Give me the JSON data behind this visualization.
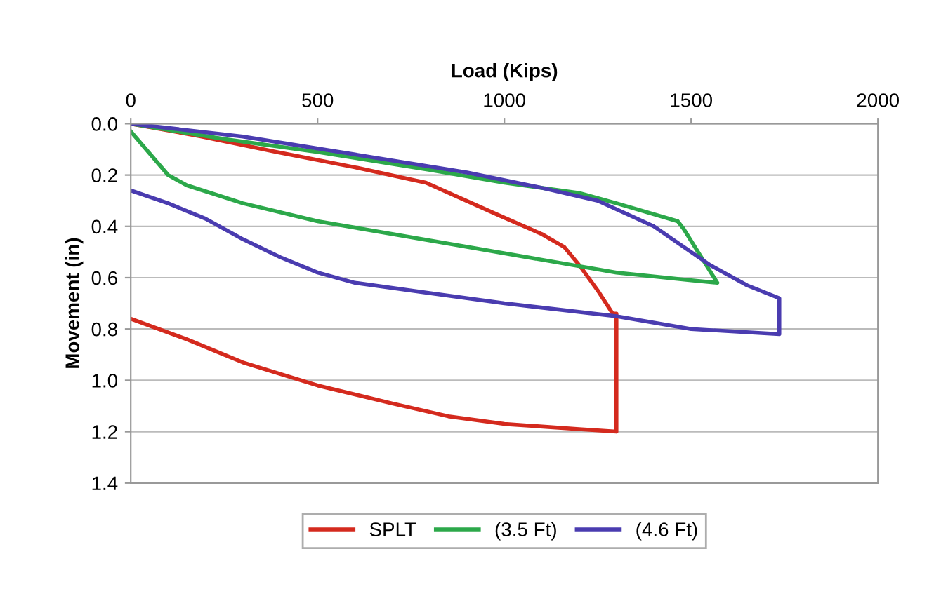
{
  "chart_data": {
    "type": "line",
    "xlabel": "Load (Kips)",
    "ylabel": "Movement (in)",
    "xlim": [
      0,
      2000
    ],
    "xticks": [
      0,
      500,
      1000,
      1500,
      2000
    ],
    "ylim": [
      1.4,
      0.0
    ],
    "yticks": [
      {
        "value": 0,
        "label": "0.0"
      },
      {
        "value": 0.2,
        "label": "0.2"
      },
      {
        "value": 0.4,
        "label": "0.4"
      },
      {
        "value": 0.6,
        "label": "0.6"
      },
      {
        "value": 0.8,
        "label": "0.8"
      },
      {
        "value": 1.0,
        "label": "1.0"
      },
      {
        "value": 1.2,
        "label": "1.2"
      },
      {
        "value": 1.4,
        "label": "1.4"
      }
    ],
    "grid": "y",
    "legend": "bottom",
    "marker": "none",
    "line_style": "solid",
    "series": [
      {
        "name": "SPLT",
        "color": "#d42a1e",
        "x": [
          0,
          190,
          390,
          600,
          790,
          990,
          1100,
          1160,
          1200,
          1250,
          1290,
          1300,
          1300,
          1200,
          1000,
          850,
          700,
          500,
          300,
          150,
          0
        ],
        "values": [
          0,
          0.05,
          0.11,
          0.17,
          0.23,
          0.36,
          0.43,
          0.48,
          0.55,
          0.65,
          0.74,
          0.74,
          1.2,
          1.19,
          1.17,
          1.14,
          1.09,
          1.02,
          0.93,
          0.84,
          0.76
        ]
      },
      {
        "name": "(3.5 Ft)",
        "color": "#2ca84a",
        "x": [
          0,
          250,
          500,
          800,
          1000,
          1200,
          1300,
          1464,
          1480,
          1570,
          1500,
          1300,
          1100,
          900,
          700,
          500,
          300,
          150,
          100,
          0
        ],
        "values": [
          0,
          0.06,
          0.11,
          0.18,
          0.23,
          0.27,
          0.31,
          0.38,
          0.41,
          0.62,
          0.61,
          0.58,
          0.53,
          0.48,
          0.43,
          0.38,
          0.31,
          0.24,
          0.2,
          0.03
        ]
      },
      {
        "name": "(4.6 Ft)",
        "color": "#4a3cb0",
        "x": [
          0,
          300,
          600,
          900,
          1100,
          1250,
          1400,
          1550,
          1650,
          1736,
          1736,
          1500,
          1300,
          1000,
          800,
          600,
          500,
          400,
          300,
          200,
          100,
          0
        ],
        "values": [
          0,
          0.05,
          0.12,
          0.19,
          0.25,
          0.3,
          0.4,
          0.55,
          0.63,
          0.68,
          0.82,
          0.8,
          0.75,
          0.7,
          0.66,
          0.62,
          0.58,
          0.52,
          0.45,
          0.37,
          0.31,
          0.26
        ]
      }
    ]
  }
}
